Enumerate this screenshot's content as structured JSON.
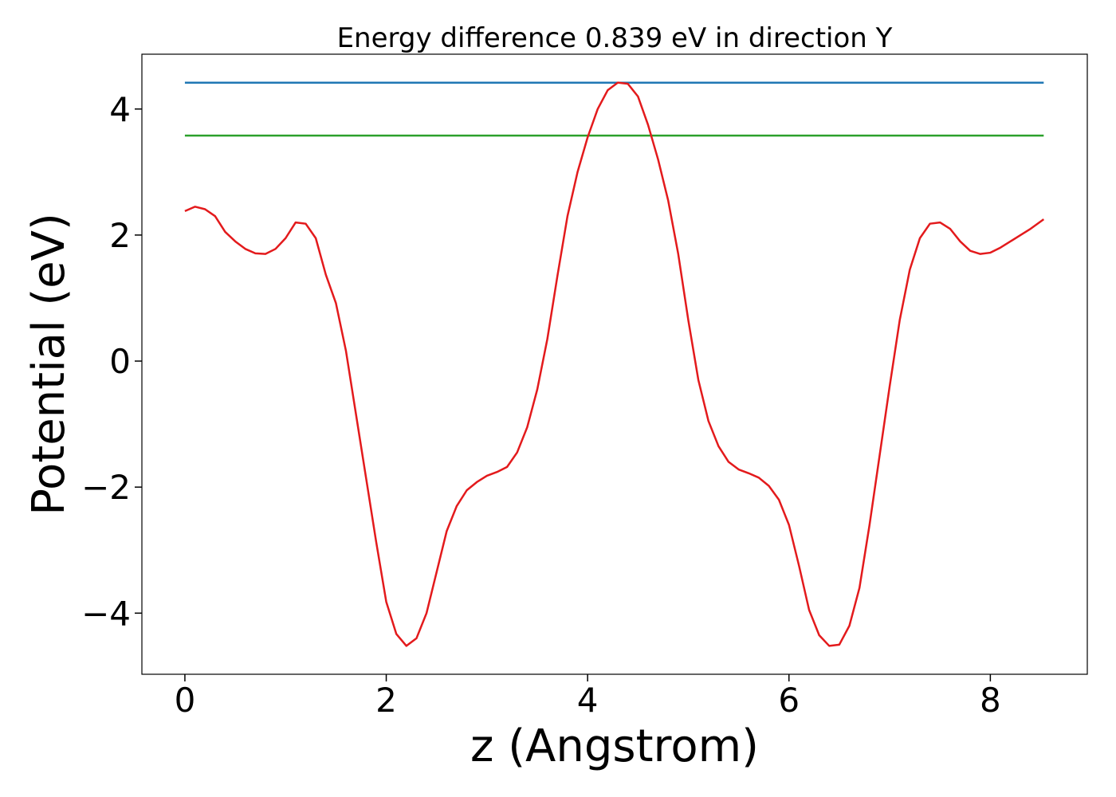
{
  "chart_data": {
    "type": "line",
    "title": "Energy difference 0.839 eV in direction Y",
    "xlabel": "z (Angstrom)",
    "ylabel": "Potential (eV)",
    "xlim": [
      -0.427,
      8.963
    ],
    "ylim": [
      -4.97,
      4.87
    ],
    "xticks": [
      0,
      2,
      4,
      6,
      8
    ],
    "yticks": [
      {
        "value": -4,
        "label": "−4"
      },
      {
        "value": -2,
        "label": "−2"
      },
      0,
      2,
      4
    ],
    "series": [
      {
        "color": "#1f77b4",
        "x": [
          0,
          8.53
        ],
        "values": [
          4.418,
          4.418
        ]
      },
      {
        "color": "#2ca02c",
        "x": [
          0,
          8.53
        ],
        "values": [
          3.579,
          3.579
        ]
      },
      {
        "color": "#e31a1c",
        "x": [
          0,
          0.1,
          0.2,
          0.3,
          0.4,
          0.5,
          0.6,
          0.7,
          0.8,
          0.9,
          1.0,
          1.1,
          1.2,
          1.3,
          1.4,
          1.5,
          1.6,
          1.7,
          1.8,
          1.9,
          2.0,
          2.1,
          2.2,
          2.3,
          2.4,
          2.5,
          2.6,
          2.7,
          2.8,
          2.9,
          3.0,
          3.1,
          3.2,
          3.3,
          3.4,
          3.5,
          3.6,
          3.7,
          3.8,
          3.9,
          4.0,
          4.1,
          4.2,
          4.3,
          4.4,
          4.5,
          4.6,
          4.7,
          4.8,
          4.9,
          5.0,
          5.1,
          5.2,
          5.3,
          5.4,
          5.5,
          5.6,
          5.7,
          5.8,
          5.9,
          6.0,
          6.1,
          6.2,
          6.3,
          6.4,
          6.5,
          6.6,
          6.7,
          6.8,
          6.9,
          7.0,
          7.1,
          7.2,
          7.3,
          7.4,
          7.5,
          7.6,
          7.7,
          7.8,
          7.9,
          8.0,
          8.1,
          8.2,
          8.3,
          8.4,
          8.53
        ],
        "values": [
          2.38,
          2.45,
          2.41,
          2.3,
          2.05,
          1.9,
          1.78,
          1.71,
          1.7,
          1.78,
          1.95,
          2.2,
          2.18,
          1.95,
          1.37,
          0.92,
          0.16,
          -0.85,
          -1.86,
          -2.87,
          -3.82,
          -4.33,
          -4.52,
          -4.4,
          -4.0,
          -3.35,
          -2.7,
          -2.3,
          -2.05,
          -1.92,
          -1.82,
          -1.76,
          -1.68,
          -1.45,
          -1.05,
          -0.45,
          0.35,
          1.35,
          2.3,
          3.0,
          3.55,
          4.0,
          4.3,
          4.42,
          4.4,
          4.2,
          3.75,
          3.2,
          2.55,
          1.7,
          0.65,
          -0.3,
          -0.95,
          -1.35,
          -1.6,
          -1.72,
          -1.78,
          -1.85,
          -1.98,
          -2.2,
          -2.6,
          -3.25,
          -3.95,
          -4.35,
          -4.52,
          -4.5,
          -4.2,
          -3.6,
          -2.6,
          -1.5,
          -0.4,
          0.65,
          1.45,
          1.95,
          2.18,
          2.2,
          2.1,
          1.9,
          1.75,
          1.7,
          1.72,
          1.8,
          1.9,
          2.0,
          2.1,
          2.25
        ]
      }
    ]
  }
}
